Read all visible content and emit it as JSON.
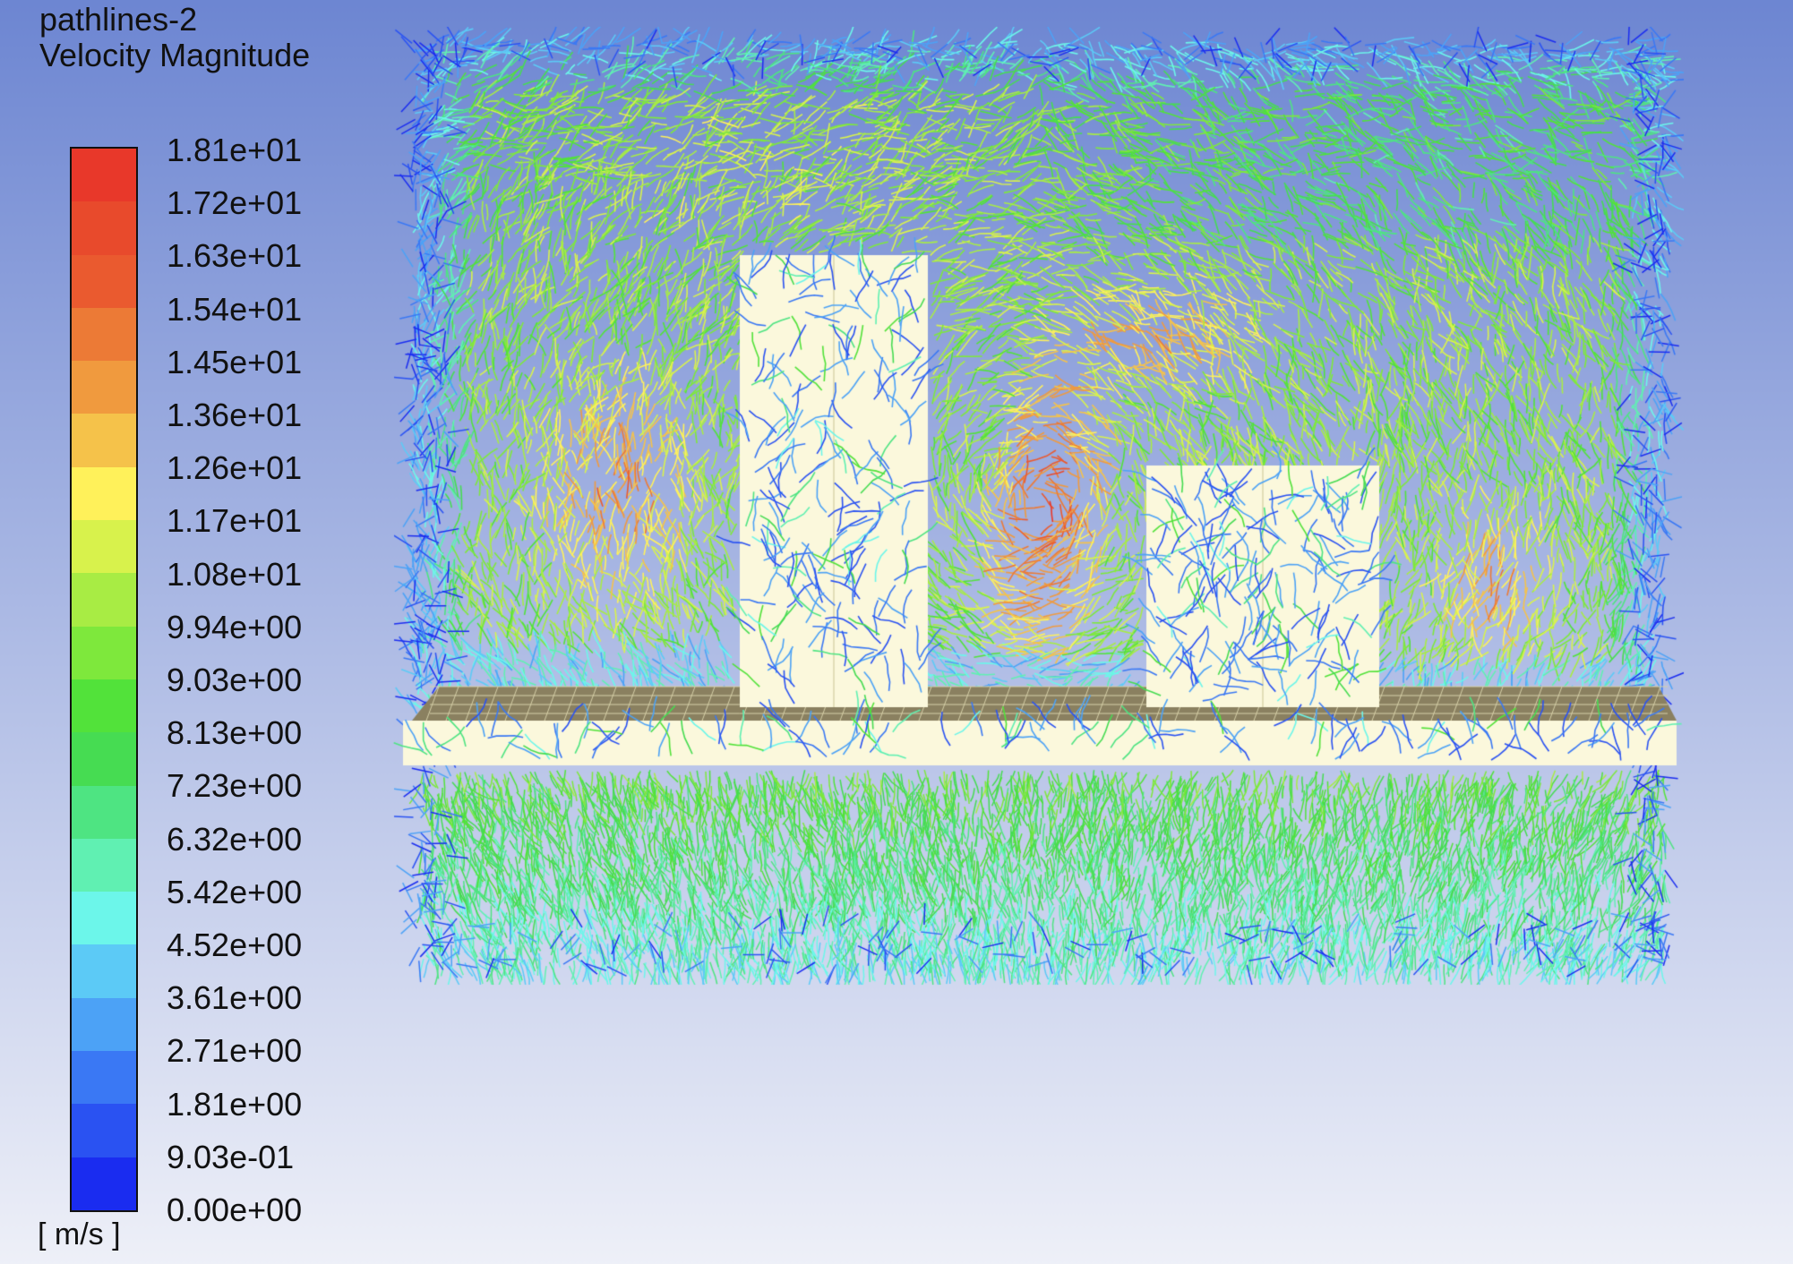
{
  "plot": {
    "title": "pathlines-2",
    "variable": "Velocity Magnitude",
    "unit": "[ m/s ]"
  },
  "colorbar": {
    "ticks": [
      "1.81e+01",
      "1.72e+01",
      "1.63e+01",
      "1.54e+01",
      "1.45e+01",
      "1.36e+01",
      "1.26e+01",
      "1.17e+01",
      "1.08e+01",
      "9.94e+00",
      "9.03e+00",
      "8.13e+00",
      "7.23e+00",
      "6.32e+00",
      "5.42e+00",
      "4.52e+00",
      "3.61e+00",
      "2.71e+00",
      "1.81e+00",
      "9.03e-01",
      "0.00e+00"
    ],
    "band_colors": [
      "#e8382a",
      "#e84a2c",
      "#ea5a2f",
      "#ec7a36",
      "#f09a3e",
      "#f5c24a",
      "#fff15a",
      "#d8f24c",
      "#a8ec44",
      "#7ee83c",
      "#52e23a",
      "#46dc52",
      "#4ee482",
      "#60f0b2",
      "#6cf6ea",
      "#5ccaf6",
      "#4ca2f6",
      "#3a78f4",
      "#2a52f2",
      "#1a2cf0"
    ]
  },
  "scene": {
    "background_top": "#6d86d2",
    "background_bottom": "#eef0f8",
    "geometry_color": "#fbf8dc"
  }
}
